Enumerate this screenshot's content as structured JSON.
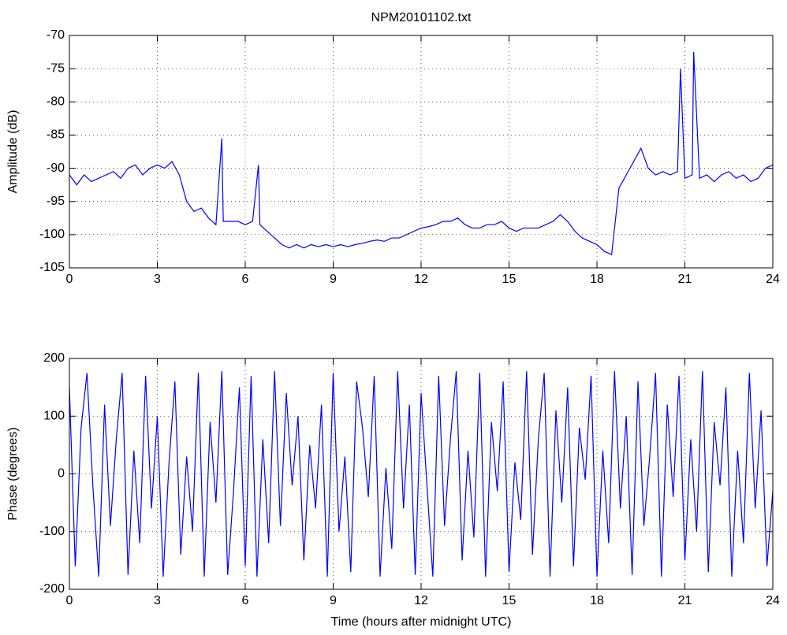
{
  "chart_data": [
    {
      "type": "line",
      "title": "NPM20101102.txt",
      "ylabel": "Amplitude (dB)",
      "color": "#0000ff",
      "grid": true,
      "xlim": [
        0,
        24
      ],
      "xticks": [
        0,
        3,
        6,
        9,
        12,
        15,
        18,
        21,
        24
      ],
      "ylim": [
        -105,
        -70
      ],
      "yticks": [
        -105,
        -100,
        -95,
        -90,
        -85,
        -80,
        -75,
        -70
      ],
      "x": [
        0,
        0.25,
        0.5,
        0.75,
        1,
        1.25,
        1.5,
        1.75,
        2,
        2.25,
        2.5,
        2.75,
        3,
        3.25,
        3.5,
        3.75,
        4,
        4.25,
        4.5,
        4.75,
        5,
        5.2,
        5.25,
        5.5,
        5.75,
        6,
        6.25,
        6.45,
        6.5,
        6.75,
        7,
        7.25,
        7.5,
        7.75,
        8,
        8.25,
        8.5,
        8.75,
        9,
        9.25,
        9.5,
        9.75,
        10,
        10.25,
        10.5,
        10.75,
        11,
        11.25,
        11.5,
        11.75,
        12,
        12.25,
        12.5,
        12.75,
        13,
        13.25,
        13.5,
        13.75,
        14,
        14.25,
        14.5,
        14.75,
        15,
        15.25,
        15.5,
        15.75,
        16,
        16.25,
        16.5,
        16.75,
        17,
        17.25,
        17.5,
        17.75,
        18,
        18.25,
        18.5,
        18.75,
        19,
        19.25,
        19.5,
        19.75,
        20,
        20.25,
        20.5,
        20.75,
        20.85,
        21,
        21.25,
        21.3,
        21.5,
        21.75,
        22,
        22.25,
        22.5,
        22.75,
        23,
        23.25,
        23.5,
        23.75,
        24
      ],
      "values": [
        -91,
        -92.5,
        -91,
        -92,
        -91.5,
        -91,
        -90.5,
        -91.5,
        -90,
        -89.5,
        -91,
        -90,
        -89.5,
        -90,
        -89,
        -91,
        -95,
        -96.5,
        -96,
        -97.5,
        -98.5,
        -85.5,
        -98,
        -98,
        -98,
        -98.5,
        -98,
        -89.5,
        -98.5,
        -99.5,
        -100.5,
        -101.5,
        -102,
        -101.5,
        -102,
        -101.5,
        -101.8,
        -101.5,
        -101.8,
        -101.5,
        -101.8,
        -101.5,
        -101.3,
        -101,
        -100.8,
        -101,
        -100.5,
        -100.5,
        -100,
        -99.5,
        -99,
        -98.8,
        -98.5,
        -98,
        -98,
        -97.5,
        -98.5,
        -99,
        -99,
        -98.5,
        -98.5,
        -98,
        -99,
        -99.5,
        -99,
        -99,
        -99,
        -98.5,
        -98,
        -97,
        -98,
        -99.5,
        -100.5,
        -101,
        -101.5,
        -102.5,
        -103,
        -93,
        -91,
        -89,
        -87,
        -90,
        -91,
        -90.5,
        -91,
        -90.5,
        -75,
        -91.5,
        -91,
        -72.5,
        -91.5,
        -91,
        -92,
        -91,
        -90.5,
        -91.5,
        -91,
        -92,
        -91.5,
        -90,
        -89.5
      ]
    },
    {
      "type": "line",
      "xlabel": "Time (hours after midnight UTC)",
      "ylabel": "Phase (degrees)",
      "color": "#0000ff",
      "grid": true,
      "xlim": [
        0,
        24
      ],
      "xticks": [
        0,
        3,
        6,
        9,
        12,
        15,
        18,
        21,
        24
      ],
      "ylim": [
        -200,
        200
      ],
      "yticks": [
        -200,
        -100,
        0,
        100,
        200
      ],
      "x": [
        0,
        0.2,
        0.4,
        0.6,
        0.8,
        1,
        1.2,
        1.4,
        1.6,
        1.8,
        2,
        2.2,
        2.4,
        2.6,
        2.8,
        3,
        3.2,
        3.4,
        3.6,
        3.8,
        4,
        4.2,
        4.4,
        4.6,
        4.8,
        5,
        5.2,
        5.4,
        5.6,
        5.8,
        6,
        6.2,
        6.4,
        6.6,
        6.8,
        7,
        7.2,
        7.4,
        7.6,
        7.8,
        8,
        8.2,
        8.4,
        8.6,
        8.8,
        9,
        9.2,
        9.4,
        9.6,
        9.8,
        10,
        10.2,
        10.4,
        10.6,
        10.8,
        11,
        11.2,
        11.4,
        11.6,
        11.8,
        12,
        12.2,
        12.4,
        12.6,
        12.8,
        13,
        13.2,
        13.4,
        13.6,
        13.8,
        14,
        14.2,
        14.4,
        14.6,
        14.8,
        15,
        15.2,
        15.4,
        15.6,
        15.8,
        16,
        16.2,
        16.4,
        16.6,
        16.8,
        17,
        17.2,
        17.4,
        17.6,
        17.8,
        18,
        18.2,
        18.4,
        18.6,
        18.8,
        19,
        19.2,
        19.4,
        19.6,
        19.8,
        20,
        20.2,
        20.4,
        20.6,
        20.8,
        21,
        21.2,
        21.4,
        21.6,
        21.8,
        22,
        22.2,
        22.4,
        22.6,
        22.8,
        23,
        23.2,
        23.4,
        23.6,
        23.8,
        24
      ],
      "values": [
        150,
        -160,
        80,
        175,
        -20,
        -178,
        120,
        -90,
        60,
        175,
        -175,
        40,
        -120,
        170,
        -60,
        100,
        -178,
        20,
        160,
        -140,
        30,
        -100,
        175,
        -178,
        90,
        -50,
        178,
        -175,
        -30,
        150,
        -160,
        170,
        -178,
        60,
        -120,
        178,
        -90,
        140,
        -20,
        100,
        -150,
        50,
        -60,
        120,
        -178,
        175,
        -100,
        30,
        -170,
        160,
        80,
        -40,
        170,
        -178,
        10,
        -130,
        178,
        -60,
        120,
        -175,
        140,
        -20,
        -178,
        170,
        -90,
        60,
        178,
        -150,
        40,
        -110,
        175,
        -178,
        90,
        -30,
        160,
        -170,
        20,
        -80,
        178,
        -140,
        60,
        175,
        -178,
        110,
        -50,
        150,
        -160,
        80,
        -10,
        170,
        -178,
        40,
        -120,
        178,
        -60,
        100,
        -175,
        160,
        -90,
        30,
        175,
        -178,
        120,
        -40,
        170,
        -150,
        60,
        -100,
        178,
        -170,
        90,
        -20,
        150,
        -178,
        40,
        -120,
        175,
        -60,
        110,
        -160,
        -30
      ]
    }
  ]
}
